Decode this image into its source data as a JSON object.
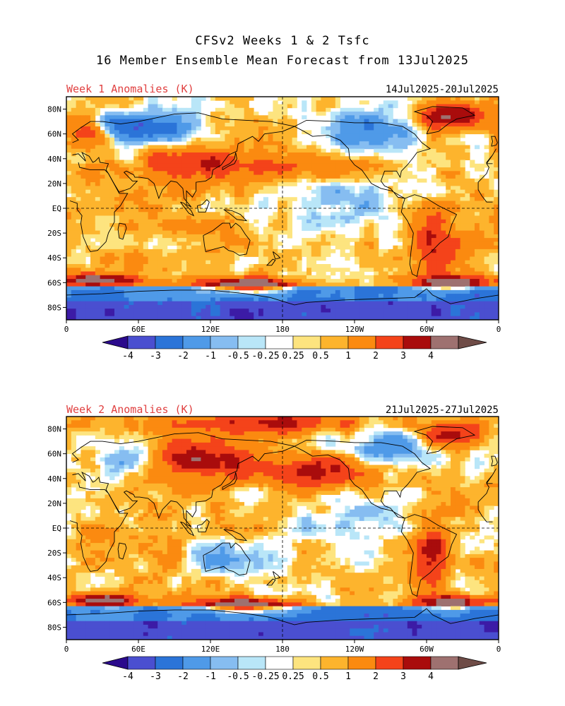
{
  "title": {
    "line1": "CFSv2 Weeks 1 & 2 Tsfc",
    "line2": "16 Member Ensemble Mean Forecast from 13Jul2025"
  },
  "panels": [
    {
      "label": "Week 1 Anomalies (K)",
      "date_range": "14Jul2025-20Jul2025",
      "field": "week1"
    },
    {
      "label": "Week 2 Anomalies (K)",
      "date_range": "21Jul2025-27Jul2025",
      "field": "week2"
    }
  ],
  "axes": {
    "lat_labels": [
      "80N",
      "60N",
      "40N",
      "20N",
      "EQ",
      "20S",
      "40S",
      "60S",
      "80S"
    ],
    "lat_values": [
      80,
      60,
      40,
      20,
      0,
      -20,
      -40,
      -60,
      -80
    ],
    "lon_labels": [
      "0",
      "60E",
      "120E",
      "180",
      "120W",
      "60W",
      "0"
    ],
    "lon_values": [
      0,
      60,
      120,
      180,
      240,
      300,
      360
    ],
    "lat_range": [
      -90,
      90
    ],
    "lon_range": [
      0,
      360
    ],
    "reference_lines": [
      "equator",
      "dateline"
    ]
  },
  "colorbar": {
    "labels": [
      "-4",
      "-3",
      "-2",
      "-1",
      "-0.5",
      "-0.25",
      "0.25",
      "0.5",
      "1",
      "2",
      "3",
      "4"
    ],
    "colors": [
      "#3c1ba6",
      "#4a4fd0",
      "#2b74d8",
      "#4f9ae8",
      "#86bdf1",
      "#b9e6f8",
      "#ffffff",
      "#fde47f",
      "#fdb42d",
      "#fb8a10",
      "#f4431a",
      "#a90c0c",
      "#9e7170",
      "#6f4c47"
    ],
    "under_color": "#2b0a8c",
    "over_color": "#6f4c47"
  }
}
